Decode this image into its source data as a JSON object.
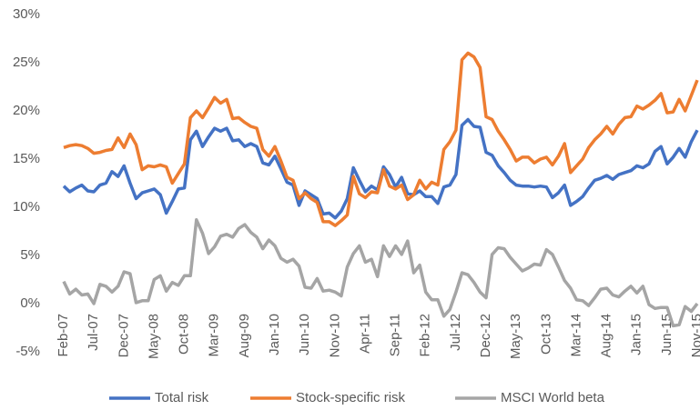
{
  "chart_data": {
    "type": "line",
    "categories": [
      "Feb-07",
      null,
      null,
      null,
      null,
      "Jul-07",
      null,
      null,
      null,
      null,
      "Dec-07",
      null,
      null,
      null,
      null,
      "May-08",
      null,
      null,
      null,
      null,
      "Oct-08",
      null,
      null,
      null,
      null,
      "Mar-09",
      null,
      null,
      null,
      null,
      "Aug-09",
      null,
      null,
      null,
      null,
      "Jan-10",
      null,
      null,
      null,
      null,
      "Jun-10",
      null,
      null,
      null,
      null,
      "Nov-10",
      null,
      null,
      null,
      null,
      "Apr-11",
      null,
      null,
      null,
      null,
      "Sep-11",
      null,
      null,
      null,
      null,
      "Feb-12",
      null,
      null,
      null,
      null,
      "Jul-12",
      null,
      null,
      null,
      null,
      "Dec-12",
      null,
      null,
      null,
      null,
      "May-13",
      null,
      null,
      null,
      null,
      "Oct-13",
      null,
      null,
      null,
      null,
      "Mar-14",
      null,
      null,
      null,
      null,
      "Aug-14",
      null,
      null,
      null,
      null,
      "Jan-15",
      null,
      null,
      null,
      null,
      "Jun-15",
      null,
      null,
      null,
      null,
      "Nov-15"
    ],
    "series": [
      {
        "name": "Total risk",
        "color": "#4472c4",
        "values": [
          12.2,
          11.6,
          12.0,
          12.3,
          11.7,
          11.6,
          12.3,
          12.5,
          13.7,
          13.2,
          14.3,
          12.5,
          10.9,
          11.5,
          11.7,
          11.9,
          11.3,
          9.4,
          10.6,
          11.9,
          12.0,
          17.0,
          17.9,
          16.3,
          17.3,
          18.2,
          17.9,
          18.2,
          16.9,
          17.0,
          16.3,
          16.6,
          16.3,
          14.6,
          14.4,
          15.3,
          14.0,
          12.6,
          12.3,
          10.2,
          11.7,
          11.3,
          10.9,
          9.3,
          9.4,
          8.9,
          9.6,
          10.9,
          14.1,
          12.8,
          11.6,
          12.2,
          11.8,
          14.2,
          13.4,
          12.1,
          13.1,
          11.4,
          11.3,
          11.7,
          11.1,
          11.1,
          10.4,
          12.1,
          12.3,
          13.4,
          18.5,
          19.1,
          18.4,
          18.3,
          15.7,
          15.4,
          14.3,
          13.6,
          12.8,
          12.3,
          12.2,
          12.2,
          12.1,
          12.2,
          12.1,
          11.0,
          11.5,
          12.3,
          10.2,
          10.6,
          11.1,
          12.0,
          12.8,
          13.0,
          13.3,
          12.9,
          13.4,
          13.6,
          13.8,
          14.3,
          14.1,
          14.5,
          15.8,
          16.3,
          14.5,
          15.2,
          16.1,
          15.2,
          16.8,
          18.0
        ]
      },
      {
        "name": "Stock-specific risk",
        "color": "#ed7d31",
        "values": [
          16.2,
          16.4,
          16.5,
          16.4,
          16.1,
          15.6,
          15.7,
          15.9,
          16.0,
          17.2,
          16.2,
          17.6,
          16.5,
          13.9,
          14.3,
          14.2,
          14.4,
          14.2,
          12.5,
          13.5,
          14.5,
          19.3,
          20.0,
          19.3,
          20.3,
          21.4,
          20.8,
          21.2,
          19.2,
          19.3,
          18.8,
          18.4,
          18.2,
          16.0,
          15.3,
          16.3,
          14.8,
          13.1,
          12.8,
          10.9,
          11.5,
          10.9,
          10.5,
          8.5,
          8.5,
          8.1,
          8.6,
          9.2,
          13.2,
          11.4,
          11.0,
          11.6,
          11.5,
          13.9,
          12.2,
          11.9,
          12.3,
          10.8,
          11.3,
          12.8,
          11.9,
          12.6,
          12.3,
          16.0,
          16.8,
          18.0,
          25.3,
          26.0,
          25.6,
          24.5,
          19.4,
          19.1,
          17.9,
          17.0,
          16.0,
          14.8,
          15.2,
          15.2,
          14.6,
          15.0,
          15.2,
          14.4,
          15.3,
          16.6,
          13.6,
          14.3,
          15.0,
          16.2,
          17.0,
          17.6,
          18.4,
          17.6,
          18.6,
          19.3,
          19.4,
          20.5,
          20.2,
          20.6,
          21.1,
          21.8,
          19.8,
          19.9,
          21.2,
          20.0,
          21.6,
          23.2
        ]
      },
      {
        "name": "MSCI World beta",
        "color": "#a5a5a5",
        "values": [
          2.3,
          1.0,
          1.5,
          0.9,
          1.0,
          0.0,
          2.0,
          1.8,
          1.2,
          1.8,
          3.3,
          3.1,
          0.1,
          0.3,
          0.3,
          2.5,
          2.9,
          1.3,
          2.2,
          1.9,
          2.9,
          2.9,
          8.7,
          7.3,
          5.2,
          5.9,
          7.0,
          7.2,
          6.9,
          7.8,
          8.2,
          7.4,
          6.9,
          5.7,
          6.6,
          6.0,
          4.7,
          4.3,
          4.6,
          3.9,
          1.7,
          1.6,
          2.6,
          1.3,
          1.4,
          1.2,
          0.8,
          3.8,
          5.2,
          6.0,
          4.3,
          4.6,
          2.8,
          6.0,
          4.9,
          6.0,
          5.1,
          6.5,
          3.2,
          4.0,
          1.2,
          0.4,
          0.4,
          -1.3,
          -0.6,
          1.2,
          3.2,
          3.0,
          2.2,
          1.2,
          0.6,
          5.1,
          5.8,
          5.7,
          4.8,
          4.1,
          3.4,
          3.7,
          4.1,
          4.0,
          5.6,
          5.1,
          3.8,
          2.4,
          1.6,
          0.4,
          0.3,
          -0.2,
          0.6,
          1.5,
          1.6,
          0.9,
          0.7,
          1.3,
          1.8,
          1.1,
          1.8,
          -0.1,
          -0.5,
          -0.4,
          -0.4,
          -2.3,
          -2.2,
          -0.3,
          -0.8,
          0.0
        ]
      }
    ],
    "ylim": [
      -5,
      30
    ],
    "yticks": [
      {
        "value": -5,
        "label": "-5%"
      },
      {
        "value": 0,
        "label": "0%"
      },
      {
        "value": 5,
        "label": "5%"
      },
      {
        "value": 10,
        "label": "10%"
      },
      {
        "value": 15,
        "label": "15%"
      },
      {
        "value": 20,
        "label": "20%"
      },
      {
        "value": 25,
        "label": "25%"
      },
      {
        "value": 30,
        "label": "30%"
      }
    ],
    "grid": false,
    "legend": "bottom"
  }
}
